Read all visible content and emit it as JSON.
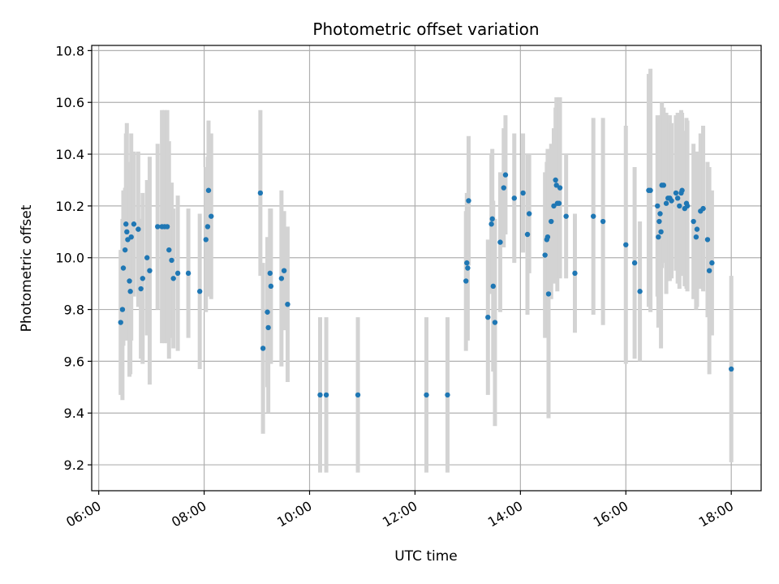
{
  "chart_data": {
    "type": "scatter",
    "title": "Photometric offset variation",
    "xlabel": "UTC time",
    "ylabel": "Photometric offset",
    "grid": true,
    "x_ticks": [
      "06:00",
      "08:00",
      "10:00",
      "12:00",
      "14:00",
      "16:00",
      "18:00"
    ],
    "y_ticks": [
      "9.2",
      "9.4",
      "9.6",
      "9.8",
      "10.0",
      "10.2",
      "10.4",
      "10.6",
      "10.8"
    ],
    "xlim": [
      "05:52",
      "18:34"
    ],
    "ylim": [
      9.1,
      10.82
    ],
    "colors": {
      "point": "#1f77b4",
      "errorbar": "#d3d3d3",
      "grid": "#b0b0b0",
      "axis": "#000000"
    },
    "series": [
      {
        "points": [
          {
            "t": "06:25",
            "y": 9.75,
            "err": 0.28
          },
          {
            "t": "06:27",
            "y": 9.8,
            "err": 0.35
          },
          {
            "t": "06:28",
            "y": 9.96,
            "err": 0.3
          },
          {
            "t": "06:30",
            "y": 10.03,
            "err": 0.24
          },
          {
            "t": "06:31",
            "y": 10.13,
            "err": 0.35
          },
          {
            "t": "06:32",
            "y": 10.1,
            "err": 0.42
          },
          {
            "t": "06:33",
            "y": 10.07,
            "err": 0.3
          },
          {
            "t": "06:35",
            "y": 9.91,
            "err": 0.37
          },
          {
            "t": "06:36",
            "y": 9.87,
            "err": 0.32
          },
          {
            "t": "06:37",
            "y": 10.08,
            "err": 0.4
          },
          {
            "t": "06:40",
            "y": 10.13,
            "err": 0.28
          },
          {
            "t": "06:45",
            "y": 10.11,
            "err": 0.3
          },
          {
            "t": "06:48",
            "y": 9.88,
            "err": 0.27
          },
          {
            "t": "06:50",
            "y": 9.92,
            "err": 0.33
          },
          {
            "t": "06:55",
            "y": 10.0,
            "err": 0.3
          },
          {
            "t": "06:58",
            "y": 9.95,
            "err": 0.44
          },
          {
            "t": "07:07",
            "y": 10.12,
            "err": 0.32
          },
          {
            "t": "07:12",
            "y": 10.12,
            "err": 0.45
          },
          {
            "t": "07:15",
            "y": 10.12,
            "err": 0.45
          },
          {
            "t": "07:18",
            "y": 10.12,
            "err": 0.45
          },
          {
            "t": "07:20",
            "y": 10.03,
            "err": 0.42
          },
          {
            "t": "07:23",
            "y": 9.99,
            "err": 0.3
          },
          {
            "t": "07:25",
            "y": 9.92,
            "err": 0.27
          },
          {
            "t": "07:30",
            "y": 9.94,
            "err": 0.3
          },
          {
            "t": "07:42",
            "y": 9.94,
            "err": 0.25
          },
          {
            "t": "07:55",
            "y": 9.87,
            "err": 0.3
          },
          {
            "t": "08:02",
            "y": 10.07,
            "err": 0.28
          },
          {
            "t": "08:04",
            "y": 10.12,
            "err": 0.27
          },
          {
            "t": "08:05",
            "y": 10.26,
            "err": 0.27
          },
          {
            "t": "08:08",
            "y": 10.16,
            "err": 0.32
          },
          {
            "t": "09:04",
            "y": 10.25,
            "err": 0.32
          },
          {
            "t": "09:07",
            "y": 9.65,
            "err": 0.33
          },
          {
            "t": "09:12",
            "y": 9.79,
            "err": 0.29
          },
          {
            "t": "09:13",
            "y": 9.73,
            "err": 0.33
          },
          {
            "t": "09:15",
            "y": 9.94,
            "err": 0.25
          },
          {
            "t": "09:16",
            "y": 9.89,
            "err": 0.3
          },
          {
            "t": "09:28",
            "y": 9.92,
            "err": 0.34
          },
          {
            "t": "09:31",
            "y": 9.95,
            "err": 0.23
          },
          {
            "t": "09:35",
            "y": 9.82,
            "err": 0.3
          },
          {
            "t": "10:12",
            "y": 9.47,
            "err": 0.3
          },
          {
            "t": "10:19",
            "y": 9.47,
            "err": 0.3
          },
          {
            "t": "10:55",
            "y": 9.47,
            "err": 0.3
          },
          {
            "t": "12:13",
            "y": 9.47,
            "err": 0.3
          },
          {
            "t": "12:37",
            "y": 9.47,
            "err": 0.3
          },
          {
            "t": "12:58",
            "y": 9.91,
            "err": 0.27
          },
          {
            "t": "12:59",
            "y": 9.98,
            "err": 0.27
          },
          {
            "t": "13:00",
            "y": 9.96,
            "err": 0.28
          },
          {
            "t": "13:01",
            "y": 10.22,
            "err": 0.25
          },
          {
            "t": "13:23",
            "y": 9.77,
            "err": 0.3
          },
          {
            "t": "13:27",
            "y": 10.13,
            "err": 0.27
          },
          {
            "t": "13:28",
            "y": 10.15,
            "err": 0.27
          },
          {
            "t": "13:29",
            "y": 9.89,
            "err": 0.33
          },
          {
            "t": "13:31",
            "y": 9.75,
            "err": 0.4
          },
          {
            "t": "13:37",
            "y": 10.06,
            "err": 0.27
          },
          {
            "t": "13:41",
            "y": 10.27,
            "err": 0.23
          },
          {
            "t": "13:43",
            "y": 10.32,
            "err": 0.23
          },
          {
            "t": "13:53",
            "y": 10.23,
            "err": 0.25
          },
          {
            "t": "14:03",
            "y": 10.25,
            "err": 0.23
          },
          {
            "t": "14:08",
            "y": 10.09,
            "err": 0.31
          },
          {
            "t": "14:10",
            "y": 10.17,
            "err": 0.23
          },
          {
            "t": "14:28",
            "y": 10.01,
            "err": 0.32
          },
          {
            "t": "14:30",
            "y": 10.07,
            "err": 0.3
          },
          {
            "t": "14:31",
            "y": 10.08,
            "err": 0.34
          },
          {
            "t": "14:32",
            "y": 9.86,
            "err": 0.48
          },
          {
            "t": "14:35",
            "y": 10.14,
            "err": 0.3
          },
          {
            "t": "14:38",
            "y": 10.2,
            "err": 0.3
          },
          {
            "t": "14:40",
            "y": 10.3,
            "err": 0.28
          },
          {
            "t": "14:41",
            "y": 10.28,
            "err": 0.34
          },
          {
            "t": "14:42",
            "y": 10.21,
            "err": 0.34
          },
          {
            "t": "14:44",
            "y": 10.21,
            "err": 0.27
          },
          {
            "t": "14:45",
            "y": 10.27,
            "err": 0.35
          },
          {
            "t": "14:52",
            "y": 10.16,
            "err": 0.24
          },
          {
            "t": "15:02",
            "y": 9.94,
            "err": 0.23
          },
          {
            "t": "15:23",
            "y": 10.16,
            "err": 0.38
          },
          {
            "t": "15:34",
            "y": 10.14,
            "err": 0.4
          },
          {
            "t": "16:00",
            "y": 10.05,
            "err": 0.46
          },
          {
            "t": "16:10",
            "y": 9.98,
            "err": 0.37
          },
          {
            "t": "16:16",
            "y": 9.87,
            "err": 0.27
          },
          {
            "t": "16:26",
            "y": 10.26,
            "err": 0.45
          },
          {
            "t": "16:28",
            "y": 10.26,
            "err": 0.47
          },
          {
            "t": "16:36",
            "y": 10.2,
            "err": 0.35
          },
          {
            "t": "16:37",
            "y": 10.08,
            "err": 0.35
          },
          {
            "t": "16:38",
            "y": 10.14,
            "err": 0.35
          },
          {
            "t": "16:39",
            "y": 10.17,
            "err": 0.35
          },
          {
            "t": "16:40",
            "y": 10.1,
            "err": 0.45
          },
          {
            "t": "16:41",
            "y": 10.28,
            "err": 0.32
          },
          {
            "t": "16:43",
            "y": 10.28,
            "err": 0.3
          },
          {
            "t": "16:46",
            "y": 10.21,
            "err": 0.35
          },
          {
            "t": "16:48",
            "y": 10.23,
            "err": 0.32
          },
          {
            "t": "16:50",
            "y": 10.23,
            "err": 0.32
          },
          {
            "t": "16:52",
            "y": 10.22,
            "err": 0.3
          },
          {
            "t": "16:57",
            "y": 10.25,
            "err": 0.3
          },
          {
            "t": "16:59",
            "y": 10.23,
            "err": 0.33
          },
          {
            "t": "17:01",
            "y": 10.2,
            "err": 0.32
          },
          {
            "t": "17:03",
            "y": 10.25,
            "err": 0.32
          },
          {
            "t": "17:04",
            "y": 10.26,
            "err": 0.3
          },
          {
            "t": "17:07",
            "y": 10.19,
            "err": 0.3
          },
          {
            "t": "17:09",
            "y": 10.21,
            "err": 0.33
          },
          {
            "t": "17:10",
            "y": 10.2,
            "err": 0.33
          },
          {
            "t": "17:17",
            "y": 10.14,
            "err": 0.3
          },
          {
            "t": "17:20",
            "y": 10.08,
            "err": 0.28
          },
          {
            "t": "17:21",
            "y": 10.11,
            "err": 0.3
          },
          {
            "t": "17:25",
            "y": 10.18,
            "err": 0.3
          },
          {
            "t": "17:28",
            "y": 10.19,
            "err": 0.32
          },
          {
            "t": "17:33",
            "y": 10.07,
            "err": 0.3
          },
          {
            "t": "17:35",
            "y": 9.95,
            "err": 0.4
          },
          {
            "t": "17:38",
            "y": 9.98,
            "err": 0.28
          },
          {
            "t": "18:00",
            "y": 9.57,
            "err": 0.36
          }
        ]
      }
    ]
  }
}
